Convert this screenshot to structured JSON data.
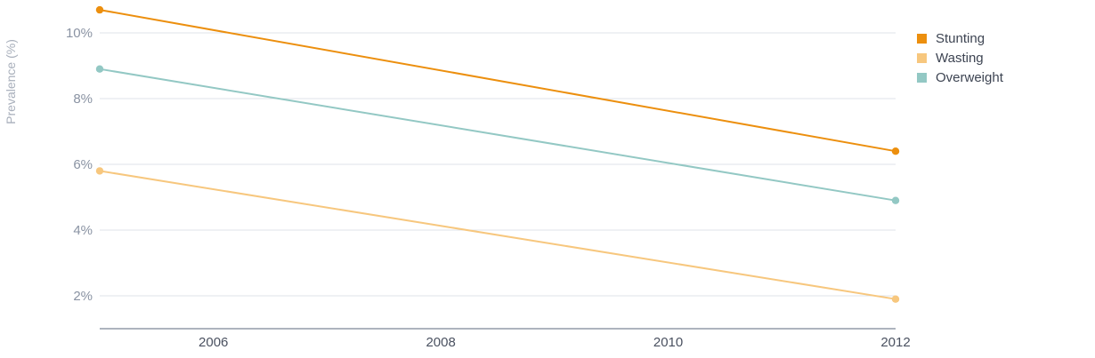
{
  "chart_data": {
    "type": "line",
    "title": "",
    "xlabel": "",
    "ylabel": "Prevalence (%)",
    "x": [
      2005,
      2012
    ],
    "xlim": [
      2005,
      2012
    ],
    "ylim": [
      1,
      11
    ],
    "x_ticks": [
      2006,
      2008,
      2010,
      2012
    ],
    "x_tick_labels": [
      "2006",
      "2008",
      "2010",
      "2012"
    ],
    "y_ticks": [
      2,
      4,
      6,
      8,
      10
    ],
    "y_tick_labels": [
      "2%",
      "4%",
      "6%",
      "8%",
      "10%"
    ],
    "grid": true,
    "legend_position": "top-right",
    "series": [
      {
        "name": "Stunting",
        "color": "#ec8f0e",
        "values": [
          10.7,
          6.4
        ]
      },
      {
        "name": "Wasting",
        "color": "#f7c77e",
        "values": [
          5.8,
          1.9
        ]
      },
      {
        "name": "Overweight",
        "color": "#93c8c4",
        "values": [
          8.9,
          4.9
        ]
      }
    ]
  }
}
